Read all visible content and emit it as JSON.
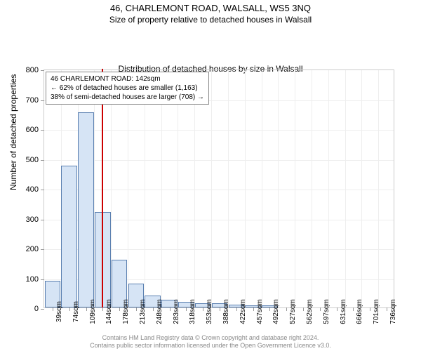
{
  "title": "46, CHARLEMONT ROAD, WALSALL, WS5 3NQ",
  "subtitle": "Size of property relative to detached houses in Walsall",
  "chart": {
    "type": "histogram",
    "y_axis_title": "Number of detached properties",
    "x_axis_title": "Distribution of detached houses by size in Walsall",
    "ylim": [
      0,
      800
    ],
    "ytick_step": 100,
    "x_categories": [
      "39sqm",
      "74sqm",
      "109sqm",
      "144sqm",
      "178sqm",
      "213sqm",
      "248sqm",
      "283sqm",
      "318sqm",
      "353sqm",
      "388sqm",
      "422sqm",
      "457sqm",
      "492sqm",
      "527sqm",
      "562sqm",
      "597sqm",
      "631sqm",
      "666sqm",
      "701sqm",
      "736sqm"
    ],
    "values": [
      90,
      475,
      655,
      320,
      160,
      80,
      40,
      25,
      20,
      15,
      15,
      10,
      8,
      8,
      0,
      0,
      0,
      0,
      0,
      0,
      0
    ],
    "bar_color": "#d6e4f5",
    "bar_border_color": "#5a7fb0",
    "marker_value_sqm": 142,
    "marker_color": "#cc0000",
    "background_color": "#ffffff",
    "grid_color": "#eeeeee",
    "axis_color": "#cccccc",
    "annotation": {
      "line1": "46 CHARLEMONT ROAD: 142sqm",
      "line2": "← 62% of detached houses are smaller (1,163)",
      "line3": "38% of semi-detached houses are larger (708) →"
    }
  },
  "footer": {
    "line1": "Contains HM Land Registry data © Crown copyright and database right 2024.",
    "line2": "Contains public sector information licensed under the Open Government Licence v3.0."
  }
}
